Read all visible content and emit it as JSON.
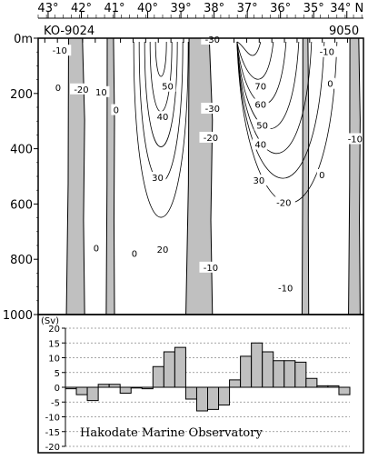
{
  "chart_data": [
    {
      "type": "heatmap",
      "section_label": "KO-9024",
      "section_label_end": "9050",
      "x_ticks": [
        "43°",
        "42°",
        "41°",
        "40°",
        "39°",
        "38°",
        "37°",
        "36°",
        "35°",
        "34° N"
      ],
      "x_tick_values": [
        43,
        42,
        41,
        40,
        39,
        38,
        37,
        36,
        35,
        34
      ],
      "xlim": [
        43.3,
        33.5
      ],
      "y_ticks": [
        "0m",
        "200",
        "400",
        "600",
        "800",
        "1000"
      ],
      "y_tick_values": [
        0,
        200,
        400,
        600,
        800,
        1000
      ],
      "ylim": [
        0,
        1000
      ],
      "shaded_bands": [
        {
          "from": 42.45,
          "to": 41.9
        },
        {
          "from": 41.25,
          "to": 41.0
        },
        {
          "from": 38.85,
          "to": 38.05
        },
        {
          "from": 35.35,
          "to": 35.15
        },
        {
          "from": 33.95,
          "to": 33.6
        }
      ],
      "contour_labels": [
        {
          "text": "-10",
          "lat": 42.65,
          "depth": 50
        },
        {
          "text": "0",
          "lat": 42.7,
          "depth": 185
        },
        {
          "text": "-20",
          "lat": 42.0,
          "depth": 190
        },
        {
          "text": "10",
          "lat": 41.4,
          "depth": 200
        },
        {
          "text": "0",
          "lat": 40.95,
          "depth": 265
        },
        {
          "text": "50",
          "lat": 39.4,
          "depth": 180
        },
        {
          "text": "40",
          "lat": 39.55,
          "depth": 290
        },
        {
          "text": "-30",
          "lat": 38.05,
          "depth": 260
        },
        {
          "text": "30",
          "lat": 39.7,
          "depth": 510
        },
        {
          "text": "-20",
          "lat": 38.1,
          "depth": 365
        },
        {
          "text": "20",
          "lat": 39.55,
          "depth": 770
        },
        {
          "text": "-10",
          "lat": 38.1,
          "depth": 835
        },
        {
          "text": "0",
          "lat": 41.55,
          "depth": 765
        },
        {
          "text": "0",
          "lat": 40.4,
          "depth": 785
        },
        {
          "text": "-30",
          "lat": 38.05,
          "depth": 10
        },
        {
          "text": "70",
          "lat": 36.6,
          "depth": 180
        },
        {
          "text": "60",
          "lat": 36.6,
          "depth": 245
        },
        {
          "text": "50",
          "lat": 36.55,
          "depth": 320
        },
        {
          "text": "40",
          "lat": 36.6,
          "depth": 390
        },
        {
          "text": "30",
          "lat": 36.65,
          "depth": 520
        },
        {
          "text": "-20",
          "lat": 35.9,
          "depth": 600
        },
        {
          "text": "0",
          "lat": 34.5,
          "depth": 170
        },
        {
          "text": "-10",
          "lat": 33.75,
          "depth": 370
        },
        {
          "text": "0",
          "lat": 34.75,
          "depth": 500
        },
        {
          "text": "-10",
          "lat": 35.85,
          "depth": 910
        },
        {
          "text": "-10",
          "lat": 34.6,
          "depth": 55
        }
      ]
    },
    {
      "type": "bar",
      "ylabel": "(Sv)",
      "y_ticks": [
        "20",
        "15",
        "10",
        "5",
        "0",
        "-5",
        "-10",
        "-15",
        "-20"
      ],
      "ylim": [
        -20,
        20
      ],
      "grid": true,
      "values": [
        -0.5,
        -2.5,
        -4.5,
        1,
        1,
        -2,
        0,
        -0.5,
        7,
        12,
        13.5,
        -4,
        -8,
        -7.5,
        -6,
        2.5,
        10.5,
        15,
        12,
        9,
        9,
        8.5,
        3,
        0.5,
        0.5,
        -2.5
      ]
    }
  ],
  "credit": "Hakodate Marine Observatory",
  "colors": {
    "shade": "#c0c0c0",
    "line": "#000000",
    "grid": "#888888"
  }
}
